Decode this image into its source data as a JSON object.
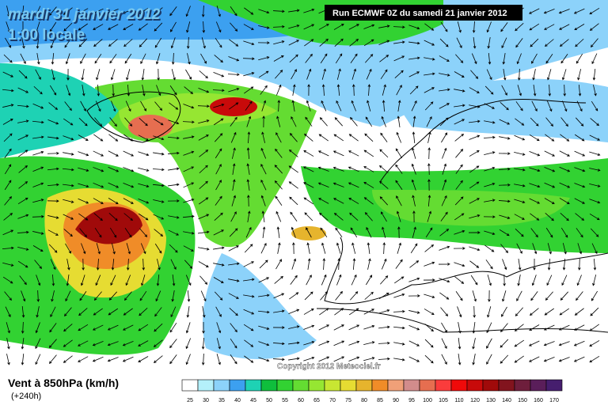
{
  "header": {
    "date": "mardi 31 janvier 2012",
    "time": "1:00 locale",
    "run": "Run ECMWF 0Z du samedi 21 janvier 2012"
  },
  "copyright": "Copyright 2012 Meteociel.fr",
  "legend": {
    "title": "Vent à 850hPa (km/h)",
    "lead": "(+240h)",
    "levels": [
      {
        "value": "25",
        "color": "#ffffff"
      },
      {
        "value": "30",
        "color": "#b4f0fa"
      },
      {
        "value": "35",
        "color": "#8cd2fa"
      },
      {
        "value": "40",
        "color": "#3ca0f0"
      },
      {
        "value": "45",
        "color": "#1ed2b4"
      },
      {
        "value": "50",
        "color": "#0fbe3c"
      },
      {
        "value": "55",
        "color": "#32d232"
      },
      {
        "value": "60",
        "color": "#64dc32"
      },
      {
        "value": "65",
        "color": "#96e632"
      },
      {
        "value": "70",
        "color": "#c8e632"
      },
      {
        "value": "75",
        "color": "#e6dc32"
      },
      {
        "value": "80",
        "color": "#e6b42d"
      },
      {
        "value": "85",
        "color": "#f08c28"
      },
      {
        "value": "90",
        "color": "#f0a078"
      },
      {
        "value": "95",
        "color": "#d28c8c"
      },
      {
        "value": "100",
        "color": "#e66e50"
      },
      {
        "value": "105",
        "color": "#fa3c3c"
      },
      {
        "value": "110",
        "color": "#f00a0a"
      },
      {
        "value": "120",
        "color": "#c80a0a"
      },
      {
        "value": "130",
        "color": "#a00a0a"
      },
      {
        "value": "140",
        "color": "#82141e"
      },
      {
        "value": "150",
        "color": "#6e1e3c"
      },
      {
        "value": "160",
        "color": "#5a1e5a"
      },
      {
        "value": "170",
        "color": "#461e6e"
      }
    ]
  }
}
